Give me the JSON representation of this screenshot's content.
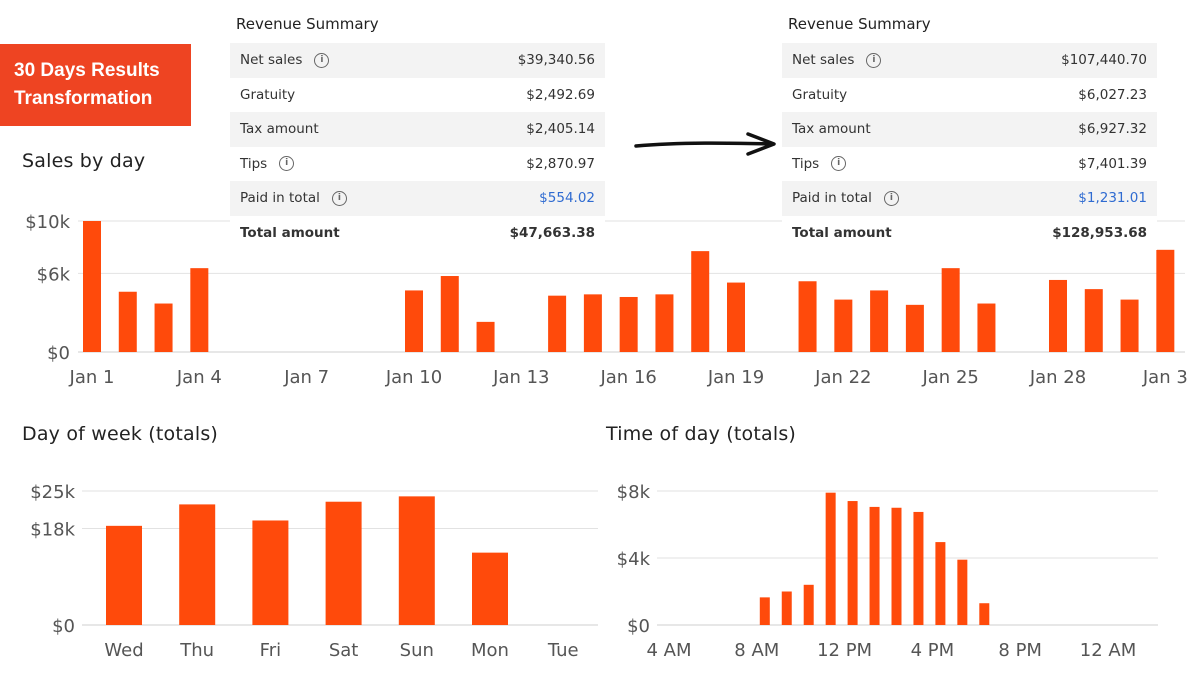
{
  "badge": {
    "line1": "30 Days Results",
    "line2": "Transformation"
  },
  "summary_before": {
    "title": "Revenue Summary",
    "rows": [
      {
        "label": "Net sales",
        "value": "$39,340.56",
        "info": true
      },
      {
        "label": "Gratuity",
        "value": "$2,492.69"
      },
      {
        "label": "Tax amount",
        "value": "$2,405.14"
      },
      {
        "label": "Tips",
        "value": "$2,870.97",
        "info": true
      },
      {
        "label": "Paid in total",
        "value": "$554.02",
        "info": true,
        "link": true
      },
      {
        "label": "Total amount",
        "value": "$47,663.38",
        "total": true
      }
    ]
  },
  "summary_after": {
    "title": "Revenue Summary",
    "rows": [
      {
        "label": "Net sales",
        "value": "$107,440.70",
        "info": true
      },
      {
        "label": "Gratuity",
        "value": "$6,027.23"
      },
      {
        "label": "Tax amount",
        "value": "$6,927.32"
      },
      {
        "label": "Tips",
        "value": "$7,401.39",
        "info": true
      },
      {
        "label": "Paid in total",
        "value": "$1,231.01",
        "info": true,
        "link": true
      },
      {
        "label": "Total amount",
        "value": "$128,953.68",
        "total": true
      }
    ]
  },
  "chart_data": [
    {
      "type": "bar",
      "title": "Sales by day",
      "ylim": [
        0,
        12000
      ],
      "y_ticks": [
        0,
        6000,
        10000
      ],
      "y_tick_labels": [
        "$0",
        "$6k",
        "$10k"
      ],
      "x_tick_labels": [
        "Jan 1",
        "Jan 4",
        "Jan 7",
        "Jan 10",
        "Jan 13",
        "Jan 16",
        "Jan 19",
        "Jan 22",
        "Jan 25",
        "Jan 28",
        "Jan 3"
      ],
      "x_tick_days": [
        1,
        4,
        7,
        10,
        13,
        16,
        19,
        22,
        25,
        28,
        31
      ],
      "days": [
        1,
        2,
        3,
        4,
        5,
        6,
        7,
        8,
        9,
        10,
        11,
        12,
        13,
        14,
        15,
        16,
        17,
        18,
        19,
        20,
        21,
        22,
        23,
        24,
        25,
        26,
        27,
        28,
        29,
        30,
        31
      ],
      "values": [
        10000,
        4600,
        3700,
        6400,
        0,
        0,
        0,
        0,
        0,
        4700,
        5800,
        2300,
        0,
        4300,
        4400,
        4200,
        4400,
        7700,
        5300,
        0,
        5400,
        4000,
        4700,
        3600,
        6400,
        3700,
        0,
        5500,
        4800,
        4000,
        7800
      ]
    },
    {
      "type": "bar",
      "title": "Day of week (totals)",
      "ylim": [
        0,
        25000
      ],
      "y_ticks": [
        0,
        18000,
        25000
      ],
      "y_tick_labels": [
        "$0",
        "$18k",
        "$25k"
      ],
      "categories": [
        "Wed",
        "Thu",
        "Fri",
        "Sat",
        "Sun",
        "Mon",
        "Tue"
      ],
      "values": [
        18500,
        22500,
        19500,
        23000,
        24000,
        13500,
        0
      ]
    },
    {
      "type": "bar",
      "title": "Time of day (totals)",
      "ylim": [
        0,
        8000
      ],
      "y_ticks": [
        0,
        4000,
        8000
      ],
      "y_tick_labels": [
        "$0",
        "$4k",
        "$8k"
      ],
      "x_tick_labels": [
        "4 AM",
        "8 AM",
        "12 PM",
        "4 PM",
        "8 PM",
        "12 AM"
      ],
      "x_tick_hours": [
        4,
        8,
        12,
        16,
        20,
        24
      ],
      "hours": [
        8,
        9,
        10,
        11,
        12,
        13,
        14,
        15,
        16,
        17,
        18
      ],
      "values": [
        1650,
        2000,
        2400,
        7900,
        7400,
        7050,
        7000,
        6750,
        4950,
        3900,
        1300
      ]
    }
  ],
  "colors": {
    "bar": "#ff4a0b",
    "badge": "#ee4422",
    "grid": "#e2e2e2",
    "axis": "#cfcfcf",
    "tick": "#555555",
    "link": "#2f6bd1"
  }
}
